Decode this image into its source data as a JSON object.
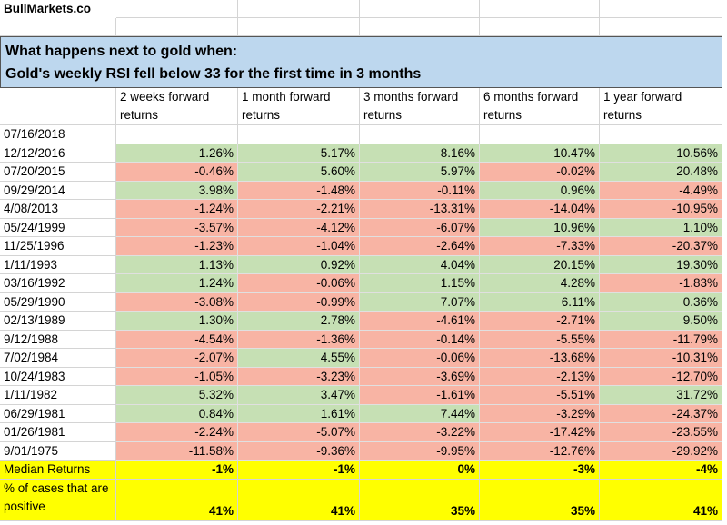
{
  "header": {
    "site": "BullMarkets.co"
  },
  "table": {
    "title_lines": [
      "What happens next to gold when:",
      "Gold's weekly RSI fell below 33 for the first time in 3 months"
    ],
    "columns": [
      "2 weeks forward returns",
      "1 month forward returns",
      "3 months forward returns",
      "6 months forward returns",
      "1 year forward returns"
    ],
    "rows": [
      {
        "date": "07/16/2018",
        "values": []
      },
      {
        "date": "12/12/2016",
        "values": [
          "1.26%",
          "5.17%",
          "8.16%",
          "10.47%",
          "10.56%"
        ]
      },
      {
        "date": "07/20/2015",
        "values": [
          "-0.46%",
          "5.60%",
          "5.97%",
          "-0.02%",
          "20.48%"
        ]
      },
      {
        "date": "09/29/2014",
        "values": [
          "3.98%",
          "-1.48%",
          "-0.11%",
          "0.96%",
          "-4.49%"
        ]
      },
      {
        "date": "4/08/2013",
        "values": [
          "-1.24%",
          "-2.21%",
          "-13.31%",
          "-14.04%",
          "-10.95%"
        ]
      },
      {
        "date": "05/24/1999",
        "values": [
          "-3.57%",
          "-4.12%",
          "-6.07%",
          "10.96%",
          "1.10%"
        ]
      },
      {
        "date": "11/25/1996",
        "values": [
          "-1.23%",
          "-1.04%",
          "-2.64%",
          "-7.33%",
          "-20.37%"
        ]
      },
      {
        "date": "1/11/1993",
        "values": [
          "1.13%",
          "0.92%",
          "4.04%",
          "20.15%",
          "19.30%"
        ]
      },
      {
        "date": "03/16/1992",
        "values": [
          "1.24%",
          "-0.06%",
          "1.15%",
          "4.28%",
          "-1.83%"
        ]
      },
      {
        "date": "05/29/1990",
        "values": [
          "-3.08%",
          "-0.99%",
          "7.07%",
          "6.11%",
          "0.36%"
        ]
      },
      {
        "date": "02/13/1989",
        "values": [
          "1.30%",
          "2.78%",
          "-4.61%",
          "-2.71%",
          "9.50%"
        ]
      },
      {
        "date": "9/12/1988",
        "values": [
          "-4.54%",
          "-1.36%",
          "-0.14%",
          "-5.55%",
          "-11.79%"
        ]
      },
      {
        "date": "7/02/1984",
        "values": [
          "-2.07%",
          "4.55%",
          "-0.06%",
          "-13.68%",
          "-10.31%"
        ]
      },
      {
        "date": "10/24/1983",
        "values": [
          "-1.05%",
          "-3.23%",
          "-3.69%",
          "-2.13%",
          "-12.70%"
        ]
      },
      {
        "date": "1/11/1982",
        "values": [
          "5.32%",
          "3.47%",
          "-1.61%",
          "-5.51%",
          "31.72%"
        ]
      },
      {
        "date": "06/29/1981",
        "values": [
          "0.84%",
          "1.61%",
          "7.44%",
          "-3.29%",
          "-24.37%"
        ]
      },
      {
        "date": "01/26/1981",
        "values": [
          "-2.24%",
          "-5.07%",
          "-3.22%",
          "-17.42%",
          "-23.55%"
        ]
      },
      {
        "date": "9/01/1975",
        "values": [
          "-11.58%",
          "-9.36%",
          "-9.95%",
          "-12.76%",
          "-29.92%"
        ]
      }
    ],
    "summary": [
      {
        "label": "Median Returns",
        "values": [
          "-1%",
          "-1%",
          "0%",
          "-3%",
          "-4%"
        ]
      },
      {
        "label": "% of cases that are positive",
        "values": [
          "41%",
          "41%",
          "35%",
          "35%",
          "41%"
        ]
      }
    ],
    "colors": {
      "positive": "#c6e0b4",
      "negative": "#f8b4a4",
      "summary": "#ffff00",
      "title": "#bdd7ee"
    }
  }
}
